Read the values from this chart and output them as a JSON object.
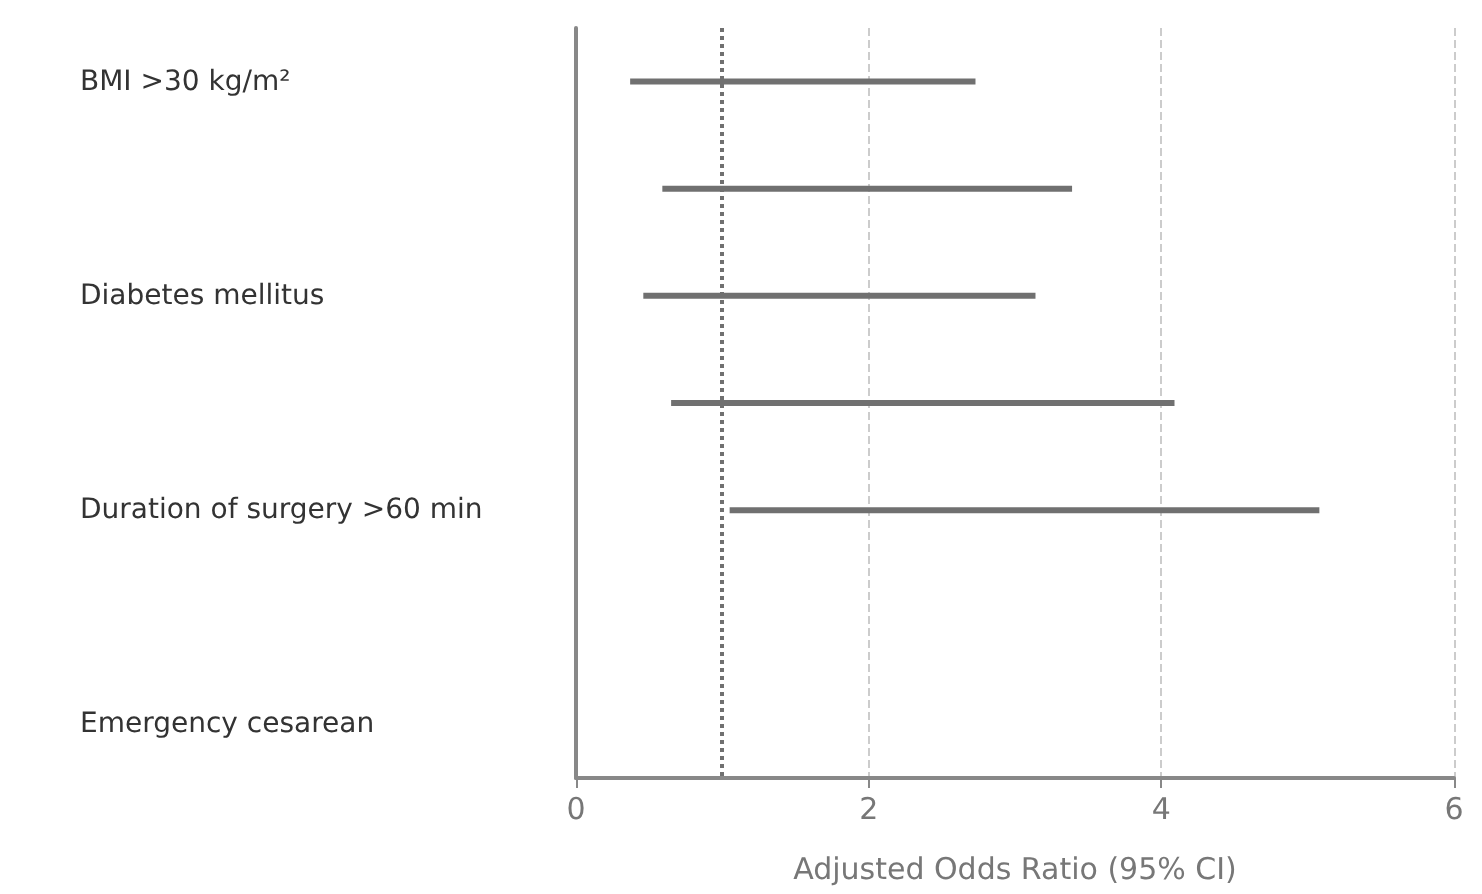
{
  "chart_data": {
    "type": "bar",
    "orientation": "horizontal",
    "xlabel": "Adjusted Odds Ratio (95% CI)",
    "categories": [
      "BMI >30 kg/m²",
      null,
      "Diabetes mellitus",
      null,
      "Duration of surgery >60 min",
      null,
      "Emergency cesarean"
    ],
    "base": [
      0.37,
      0.59,
      0.46,
      0.65,
      1.05,
      null,
      null
    ],
    "values": [
      2.36,
      2.8,
      2.68,
      3.44,
      4.03,
      null,
      null
    ],
    "color": "#707070",
    "xlim": [
      0,
      6
    ],
    "xticks": [
      0,
      2,
      4,
      6
    ],
    "grid": "x",
    "ref_lines": [
      {
        "axis": "x",
        "value": 1,
        "color": "#707070",
        "line_style": "dotted"
      }
    ]
  }
}
